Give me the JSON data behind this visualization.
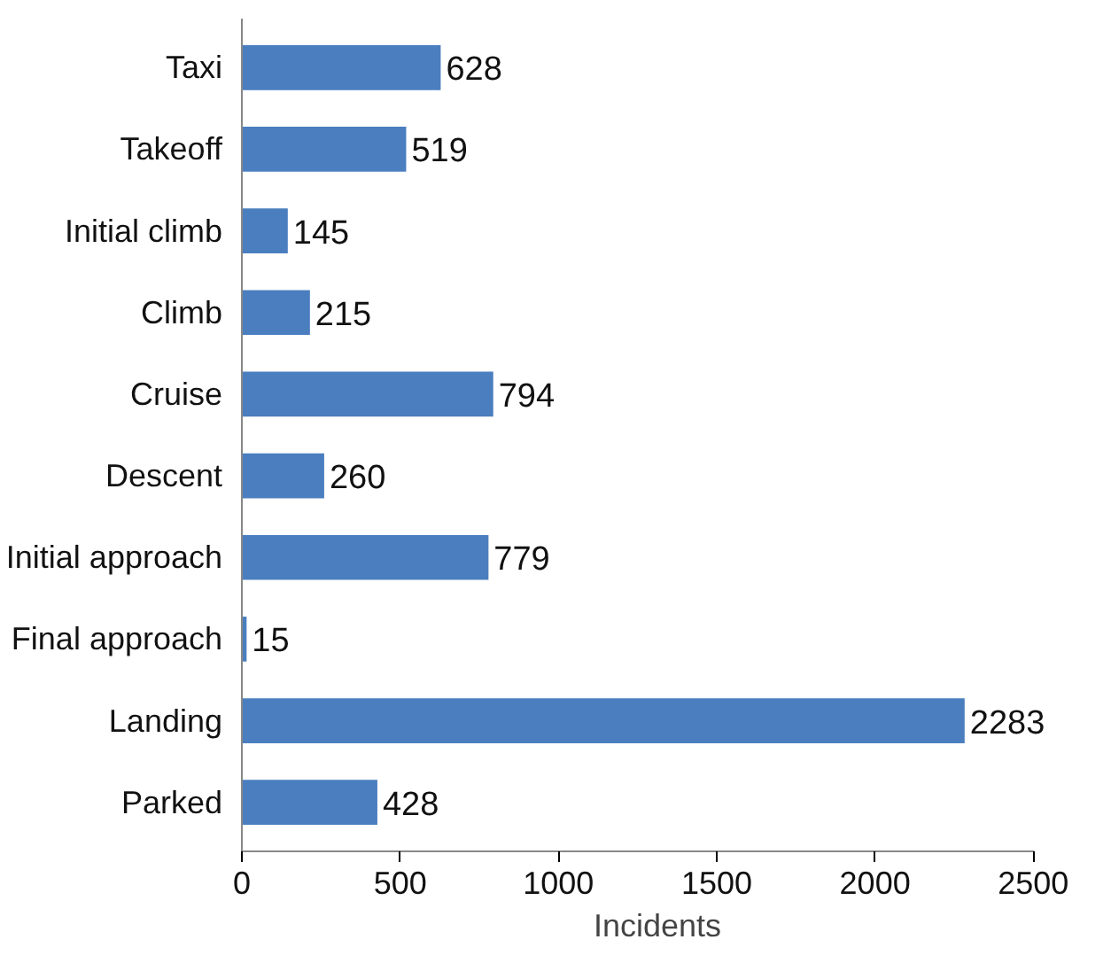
{
  "chart_data": {
    "type": "bar",
    "orientation": "horizontal",
    "xlabel": "Incidents",
    "categories": [
      "Taxi",
      "Takeoff",
      "Initial climb",
      "Climb",
      "Cruise",
      "Descent",
      "Initial approach",
      "Final approach",
      "Landing",
      "Parked"
    ],
    "values": [
      628,
      519,
      145,
      215,
      794,
      260,
      779,
      15,
      2283,
      428
    ],
    "color": "#4a7ebf",
    "xlim": [
      0,
      2500
    ],
    "xticks": [
      0,
      500,
      1000,
      1500,
      2000,
      2500
    ],
    "data_labels": true,
    "grid": false
  }
}
